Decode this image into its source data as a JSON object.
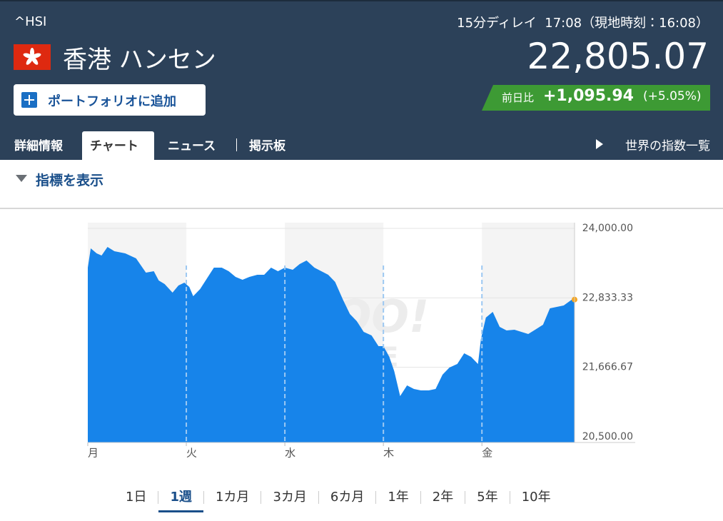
{
  "header": {
    "symbol": "^HSI",
    "name": "香港 ハンセン",
    "delay": "15分ディレイ",
    "time": "17:08（現地時刻：16:08）",
    "price": "22,805.07",
    "portfolio": "ポートフォリオに追加",
    "change_label": "前日比",
    "change": "+1,095.94",
    "change_pct": "(+5.05%)"
  },
  "tabs": [
    "詳細情報",
    "チャート",
    "ニュース",
    "掲示板"
  ],
  "world_link": "世界の指数一覧",
  "indicator": "指標を表示",
  "ranges": [
    "1日",
    "1週",
    "1カ月",
    "3カ月",
    "6カ月",
    "1年",
    "2年",
    "5年",
    "10年"
  ],
  "chart_data": {
    "type": "area",
    "watermark": [
      "YAHOO!",
      "FINANCE"
    ],
    "x": [
      0,
      0.03,
      0.09,
      0.14,
      0.2,
      0.27,
      0.38,
      0.49,
      0.59,
      0.67,
      0.72,
      0.78,
      0.86,
      0.92,
      0.98,
      1.03,
      1.07,
      1.14,
      1.21,
      1.28,
      1.36,
      1.43,
      1.5,
      1.57,
      1.64,
      1.72,
      1.79,
      1.86,
      1.93,
      2,
      2.08,
      2.15,
      2.22,
      2.3,
      2.37,
      2.44,
      2.51,
      2.59,
      2.66,
      2.73,
      2.8,
      2.88,
      2.95,
      3,
      3.06,
      3.11,
      3.17,
      3.24,
      3.31,
      3.38,
      3.46,
      3.53,
      3.6,
      3.67,
      3.75,
      3.82,
      3.89,
      3.96,
      3.99,
      4.04,
      4.11,
      4.18,
      4.25,
      4.33,
      4.4,
      4.47,
      4.54,
      4.62,
      4.69,
      4.76,
      4.83,
      4.91,
      4.94
    ],
    "series": [
      {
        "color": "#1784ea",
        "last_color": "#f5a623",
        "values": [
          23341,
          23664,
          23580,
          23544,
          23688,
          23616,
          23580,
          23497,
          23257,
          23281,
          23125,
          23065,
          22921,
          23041,
          23089,
          23017,
          22861,
          22981,
          23161,
          23341,
          23341,
          23281,
          23185,
          23137,
          23185,
          23221,
          23221,
          23341,
          23281,
          23341,
          23305,
          23401,
          23461,
          23341,
          23281,
          23221,
          23101,
          22801,
          22562,
          22442,
          22262,
          22202,
          22022,
          22022,
          21842,
          21603,
          21183,
          21363,
          21303,
          21279,
          21279,
          21303,
          21543,
          21663,
          21723,
          21902,
          21842,
          21723,
          22142,
          22502,
          22598,
          22346,
          22286,
          22298,
          22262,
          22226,
          22298,
          22382,
          22657,
          22681,
          22705,
          22801,
          22805.07
        ]
      }
    ],
    "xlim": [
      0,
      4.94
    ],
    "xticks": [
      {
        "value": 0,
        "label": "月"
      },
      {
        "value": 1,
        "label": "火"
      },
      {
        "value": 2,
        "label": "水"
      },
      {
        "value": 3,
        "label": "木"
      },
      {
        "value": 4,
        "label": "金"
      }
    ],
    "ylim": [
      20500,
      24000
    ],
    "yticks": [
      {
        "value": 20500,
        "label": "20,500.00"
      },
      {
        "value": 21666.67,
        "label": "21,666.67"
      },
      {
        "value": 22833.33,
        "label": "22,833.33"
      },
      {
        "value": 24000,
        "label": "24,000.00"
      }
    ],
    "grid": true
  }
}
